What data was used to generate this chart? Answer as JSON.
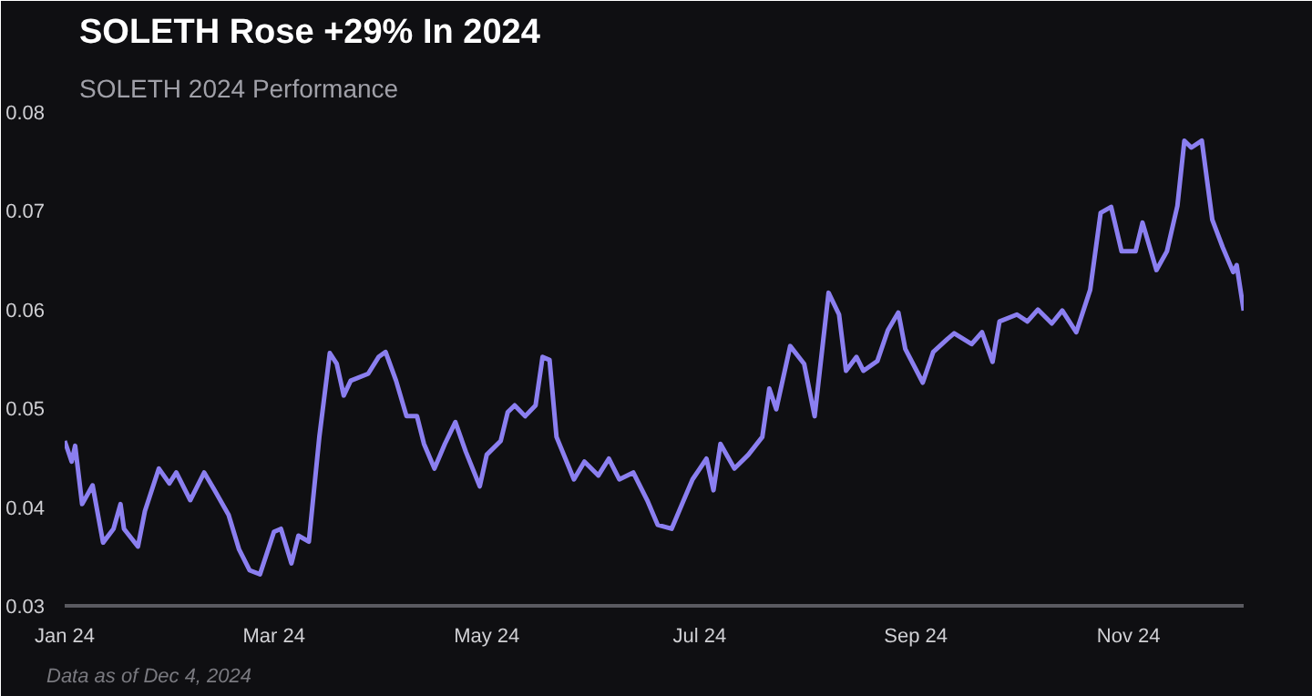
{
  "chart_data": {
    "type": "line",
    "title": "SOLETH Rose +29% In 2024",
    "subtitle": "SOLETH 2024 Performance",
    "annotations": [
      "Data as of Dec 4, 2024"
    ],
    "x": [
      "2024-01-01",
      "2024-01-03",
      "2024-01-04",
      "2024-01-06",
      "2024-01-09",
      "2024-01-12",
      "2024-01-15",
      "2024-01-17",
      "2024-01-18",
      "2024-01-22",
      "2024-01-24",
      "2024-01-28",
      "2024-01-31",
      "2024-02-02",
      "2024-02-06",
      "2024-02-10",
      "2024-02-13",
      "2024-02-17",
      "2024-02-20",
      "2024-02-23",
      "2024-02-26",
      "2024-03-01",
      "2024-03-03",
      "2024-03-06",
      "2024-03-08",
      "2024-03-11",
      "2024-03-14",
      "2024-03-17",
      "2024-03-19",
      "2024-03-21",
      "2024-03-23",
      "2024-03-28",
      "2024-03-31",
      "2024-04-02",
      "2024-04-05",
      "2024-04-08",
      "2024-04-11",
      "2024-04-13",
      "2024-04-16",
      "2024-04-19",
      "2024-04-22",
      "2024-04-25",
      "2024-04-29",
      "2024-05-01",
      "2024-05-05",
      "2024-05-07",
      "2024-05-09",
      "2024-05-12",
      "2024-05-15",
      "2024-05-17",
      "2024-05-19",
      "2024-05-21",
      "2024-05-26",
      "2024-05-29",
      "2024-06-02",
      "2024-06-05",
      "2024-06-08",
      "2024-06-12",
      "2024-06-16",
      "2024-06-19",
      "2024-06-23",
      "2024-06-26",
      "2024-06-29",
      "2024-07-03",
      "2024-07-05",
      "2024-07-07",
      "2024-07-11",
      "2024-07-15",
      "2024-07-19",
      "2024-07-21",
      "2024-07-23",
      "2024-07-27",
      "2024-07-31",
      "2024-08-03",
      "2024-08-07",
      "2024-08-10",
      "2024-08-12",
      "2024-08-15",
      "2024-08-17",
      "2024-08-21",
      "2024-08-24",
      "2024-08-27",
      "2024-08-29",
      "2024-09-03",
      "2024-09-06",
      "2024-09-10",
      "2024-09-12",
      "2024-09-17",
      "2024-09-20",
      "2024-09-23",
      "2024-09-25",
      "2024-09-30",
      "2024-10-03",
      "2024-10-06",
      "2024-10-10",
      "2024-10-13",
      "2024-10-17",
      "2024-10-21",
      "2024-10-24",
      "2024-10-27",
      "2024-10-30",
      "2024-11-03",
      "2024-11-05",
      "2024-11-09",
      "2024-11-12",
      "2024-11-15",
      "2024-11-17",
      "2024-11-19",
      "2024-11-22",
      "2024-11-25",
      "2024-11-28",
      "2024-12-01",
      "2024-12-02",
      "2024-12-04"
    ],
    "series": [
      {
        "color": "#8b7ff0",
        "values": [
          0.0467,
          0.0446,
          0.0462,
          0.0403,
          0.0422,
          0.0364,
          0.0378,
          0.0403,
          0.0378,
          0.036,
          0.0396,
          0.0439,
          0.0424,
          0.0435,
          0.0407,
          0.0435,
          0.0417,
          0.0392,
          0.0357,
          0.0336,
          0.0332,
          0.0375,
          0.0378,
          0.0343,
          0.0371,
          0.0365,
          0.0471,
          0.0556,
          0.0545,
          0.0513,
          0.0528,
          0.0535,
          0.0552,
          0.0557,
          0.0528,
          0.0492,
          0.0492,
          0.0464,
          0.0439,
          0.0464,
          0.0486,
          0.0456,
          0.0421,
          0.0453,
          0.0467,
          0.0496,
          0.0503,
          0.0492,
          0.0503,
          0.0552,
          0.0549,
          0.0471,
          0.0428,
          0.0446,
          0.0432,
          0.0449,
          0.0428,
          0.0435,
          0.0407,
          0.0382,
          0.0378,
          0.0403,
          0.0428,
          0.0449,
          0.0417,
          0.0464,
          0.0439,
          0.0453,
          0.0471,
          0.052,
          0.0499,
          0.0563,
          0.0545,
          0.0492,
          0.0617,
          0.0595,
          0.0538,
          0.0552,
          0.0538,
          0.0548,
          0.0579,
          0.0597,
          0.056,
          0.0526,
          0.0557,
          0.057,
          0.0576,
          0.0565,
          0.0577,
          0.0547,
          0.0588,
          0.0595,
          0.0588,
          0.06,
          0.0586,
          0.0599,
          0.0577,
          0.062,
          0.0698,
          0.0704,
          0.0659,
          0.0659,
          0.0688,
          0.064,
          0.0659,
          0.0705,
          0.0771,
          0.0764,
          0.0771,
          0.0691,
          0.0663,
          0.0638,
          0.0645,
          0.0599
        ]
      }
    ],
    "xlim": [
      "2024-01-01",
      "2024-12-04"
    ],
    "ylim": [
      0.03,
      0.08
    ],
    "xticks": [
      {
        "value": "2024-01-01",
        "label": "Jan 24"
      },
      {
        "value": "2024-03-01",
        "label": "Mar 24"
      },
      {
        "value": "2024-05-01",
        "label": "May 24"
      },
      {
        "value": "2024-07-01",
        "label": "Jul 24"
      },
      {
        "value": "2024-09-01",
        "label": "Sep 24"
      },
      {
        "value": "2024-11-01",
        "label": "Nov 24"
      }
    ],
    "yticks": [
      0.03,
      0.04,
      0.05,
      0.06,
      0.07,
      0.08
    ]
  }
}
